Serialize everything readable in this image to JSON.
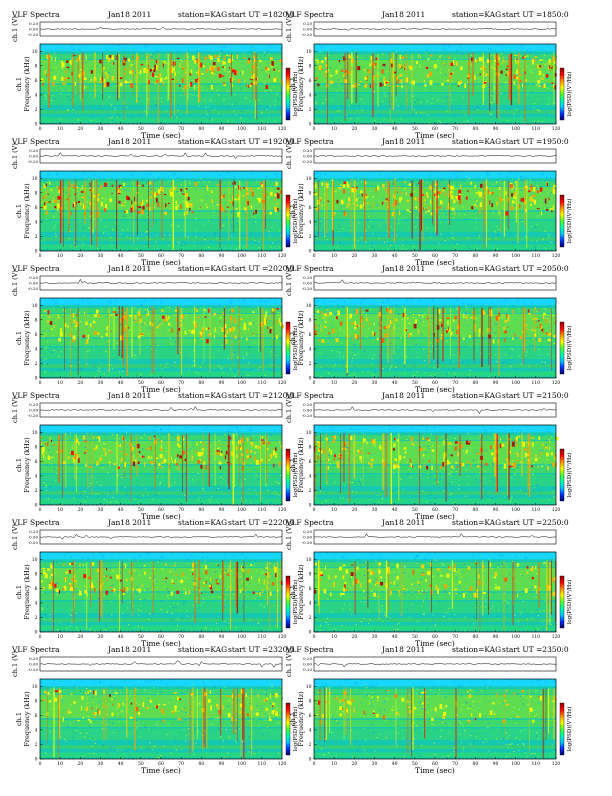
{
  "chart_data": {
    "type": "heatmap",
    "common": {
      "title_left": "VLF Spectra",
      "date": "Jan18 2011",
      "station": "station=KAG",
      "start_prefix": "start UT =",
      "wave_ylabel": "ch.1 (V)",
      "wave_ticks": [
        "0.20",
        "0.00",
        "-0.20"
      ],
      "spec_ylabel_top": "ch.1",
      "spec_ylabel_bottom": "Frequency (kHz)",
      "xlabel": "Time (sec)",
      "xticks": [
        0,
        10,
        20,
        30,
        40,
        50,
        60,
        70,
        80,
        90,
        100,
        110,
        120
      ],
      "yticks": [
        0,
        2,
        4,
        6,
        8,
        10
      ],
      "xlim": [
        0,
        120
      ],
      "ylim": [
        0,
        11
      ],
      "colorbar_label": "log(PSD)(V²/Hz)",
      "colorbar_colors": [
        "#00006a",
        "#0030ff",
        "#00c8ff",
        "#00ffaa",
        "#50ff30",
        "#ffff00",
        "#ff9000",
        "#ff0000",
        "#8c0000"
      ]
    },
    "panels": [
      {
        "start_ut": "1820:0",
        "intensity": 0.9
      },
      {
        "start_ut": "1850:0",
        "intensity": 0.9
      },
      {
        "start_ut": "1920:0",
        "intensity": 0.85
      },
      {
        "start_ut": "1950:0",
        "intensity": 0.85
      },
      {
        "start_ut": "2020:0",
        "intensity": 0.65
      },
      {
        "start_ut": "2050:0",
        "intensity": 0.65
      },
      {
        "start_ut": "2120:0",
        "intensity": 0.75
      },
      {
        "start_ut": "2150:0",
        "intensity": 0.7
      },
      {
        "start_ut": "2220:0",
        "intensity": 0.6
      },
      {
        "start_ut": "2250:0",
        "intensity": 0.5
      },
      {
        "start_ut": "2320:0",
        "intensity": 0.45
      },
      {
        "start_ut": "2350:0",
        "intensity": 0.3
      }
    ]
  }
}
